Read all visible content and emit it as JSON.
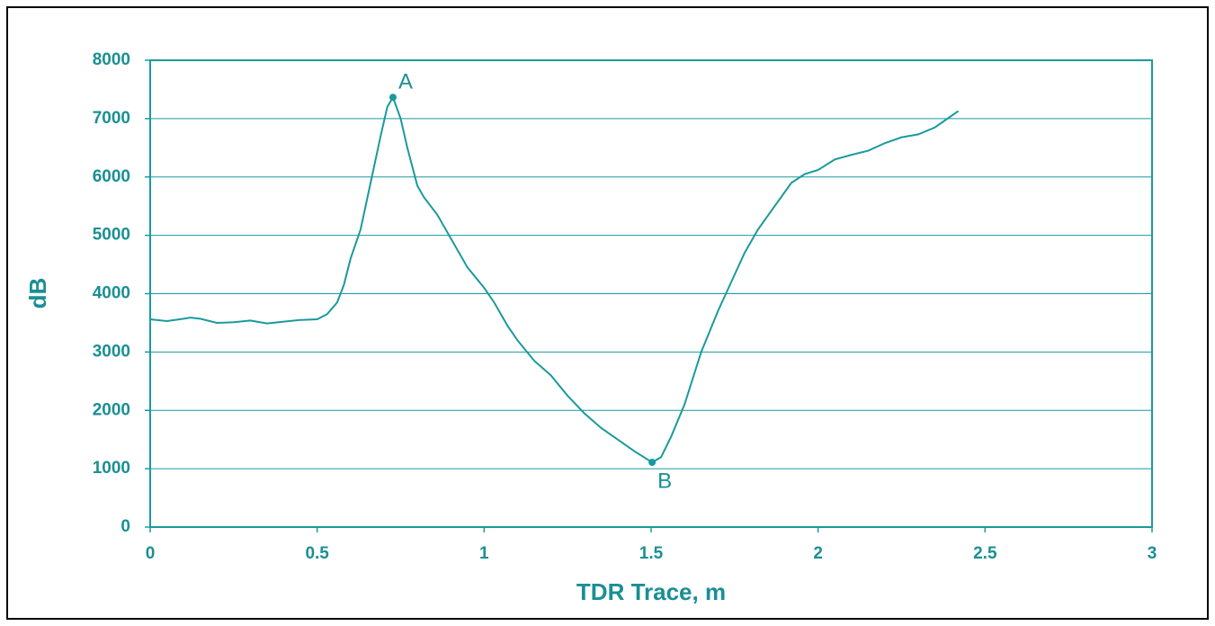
{
  "chart_data": {
    "type": "line",
    "x_label": "TDR Trace, m",
    "y_label": "dB",
    "xlim": [
      0,
      3
    ],
    "ylim": [
      0,
      8000
    ],
    "xticks": [
      0,
      0.5,
      1,
      1.5,
      2,
      2.5,
      3
    ],
    "yticks": [
      0,
      1000,
      2000,
      3000,
      4000,
      5000,
      6000,
      7000,
      8000
    ],
    "grid": true,
    "color": "#1a9a9c",
    "x": [
      0,
      0.05,
      0.1,
      0.12,
      0.15,
      0.2,
      0.25,
      0.3,
      0.35,
      0.4,
      0.45,
      0.5,
      0.53,
      0.56,
      0.58,
      0.6,
      0.63,
      0.66,
      0.69,
      0.71,
      0.727,
      0.75,
      0.77,
      0.8,
      0.82,
      0.86,
      0.9,
      0.95,
      1.0,
      1.03,
      1.07,
      1.1,
      1.15,
      1.2,
      1.25,
      1.3,
      1.35,
      1.4,
      1.45,
      1.503,
      1.53,
      1.56,
      1.6,
      1.65,
      1.7,
      1.74,
      1.78,
      1.82,
      1.87,
      1.92,
      1.96,
      2.0,
      2.05,
      2.1,
      2.15,
      2.2,
      2.25,
      2.3,
      2.35,
      2.4,
      2.42
    ],
    "values": [
      3560,
      3530,
      3570,
      3590,
      3570,
      3500,
      3510,
      3540,
      3490,
      3520,
      3550,
      3560,
      3650,
      3850,
      4150,
      4600,
      5100,
      5900,
      6700,
      7200,
      7365,
      7000,
      6500,
      5850,
      5650,
      5350,
      4950,
      4450,
      4100,
      3850,
      3450,
      3200,
      2850,
      2600,
      2250,
      1950,
      1700,
      1500,
      1300,
      1109,
      1200,
      1550,
      2100,
      3000,
      3700,
      4200,
      4700,
      5100,
      5500,
      5900,
      6050,
      6120,
      6300,
      6380,
      6450,
      6580,
      6680,
      6730,
      6850,
      7050,
      7130
    ],
    "annotations": [
      {
        "text": "A",
        "x": 0.727,
        "y": 7365
      },
      {
        "text": "B",
        "x": 1.503,
        "y": 1109
      }
    ]
  }
}
